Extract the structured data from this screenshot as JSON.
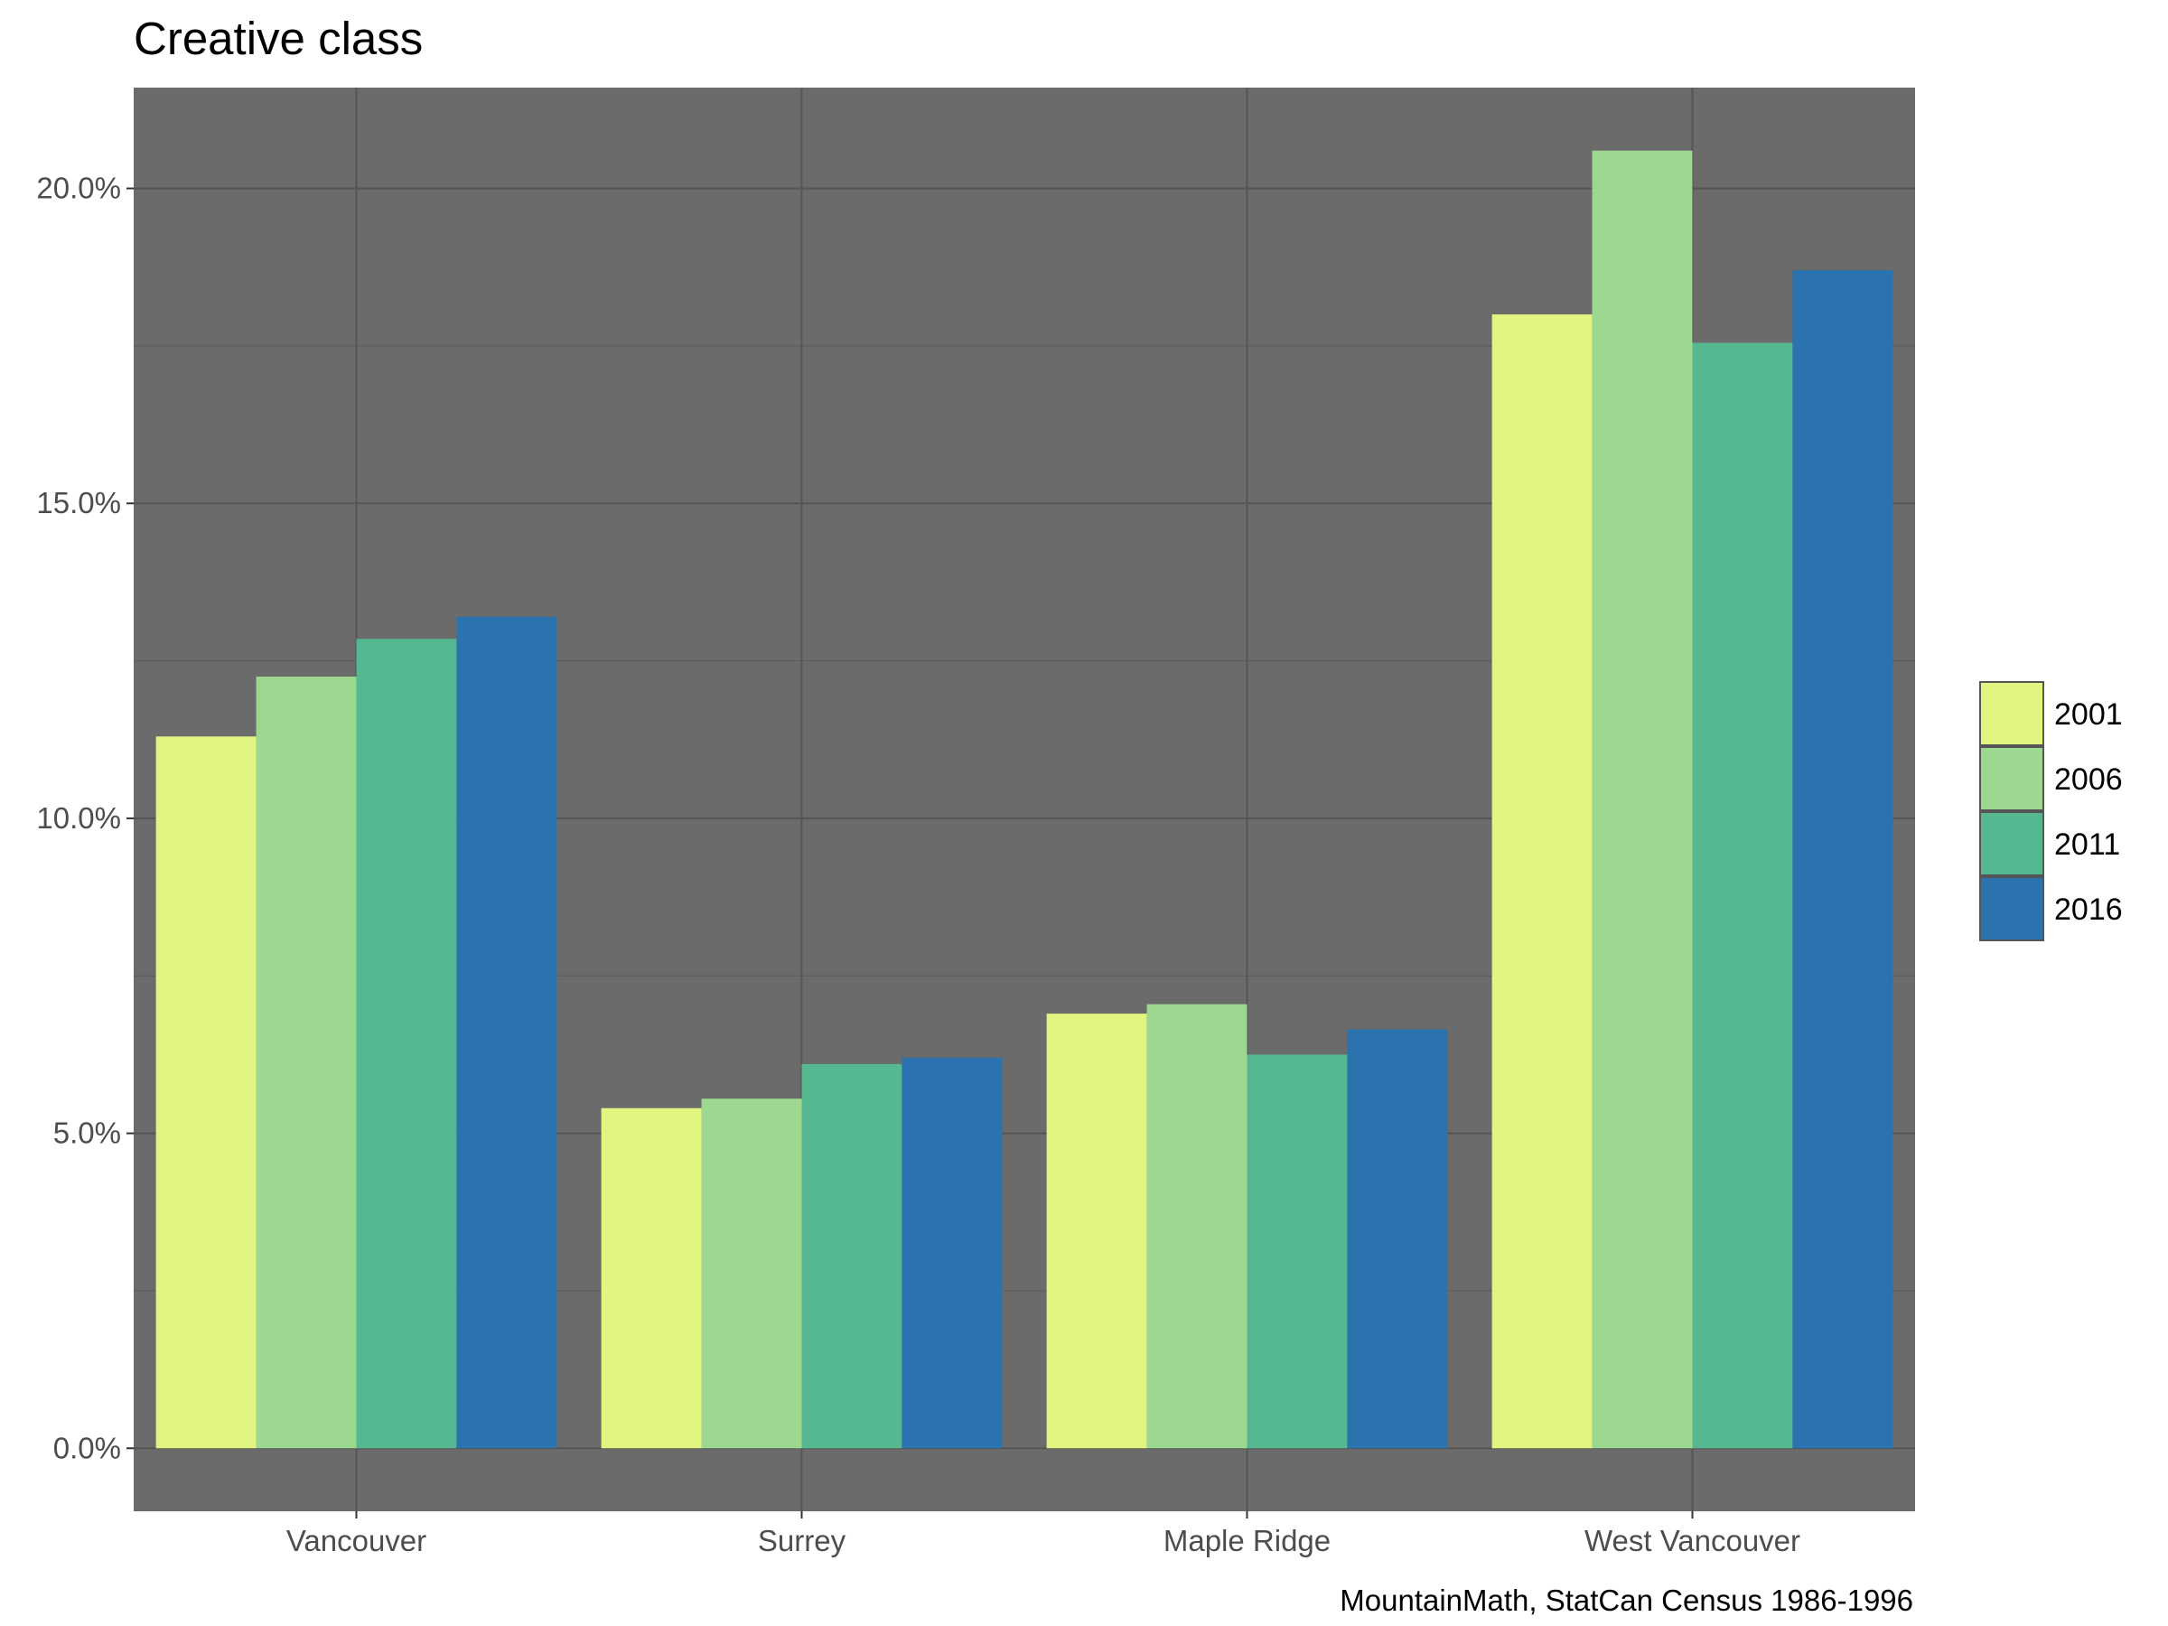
{
  "chart_data": {
    "type": "bar",
    "title": "Creative class",
    "caption": "MountainMath, StatCan Census 1986-1996",
    "xlabel": "",
    "ylabel": "",
    "categories": [
      "Vancouver",
      "Surrey",
      "Maple Ridge",
      "West Vancouver"
    ],
    "series": [
      {
        "name": "2001",
        "color": "#e1f581",
        "values": [
          11.3,
          5.4,
          6.9,
          18.0
        ]
      },
      {
        "name": "2006",
        "color": "#9cd88f",
        "values": [
          12.25,
          5.55,
          7.05,
          20.6
        ]
      },
      {
        "name": "2011",
        "color": "#56b891",
        "values": [
          12.85,
          6.1,
          6.25,
          17.55
        ]
      },
      {
        "name": "2016",
        "color": "#2a73af",
        "values": [
          13.2,
          6.2,
          6.65,
          18.7
        ]
      }
    ],
    "ylim": [
      -1.0,
      21.6
    ],
    "yticks": [
      0,
      5,
      10,
      15,
      20
    ],
    "ytick_labels": [
      "0.0%",
      "5.0%",
      "10.0%",
      "15.0%",
      "20.0%"
    ],
    "panel_background": "#6b6b6b",
    "grid": true,
    "legend_position": "right"
  }
}
